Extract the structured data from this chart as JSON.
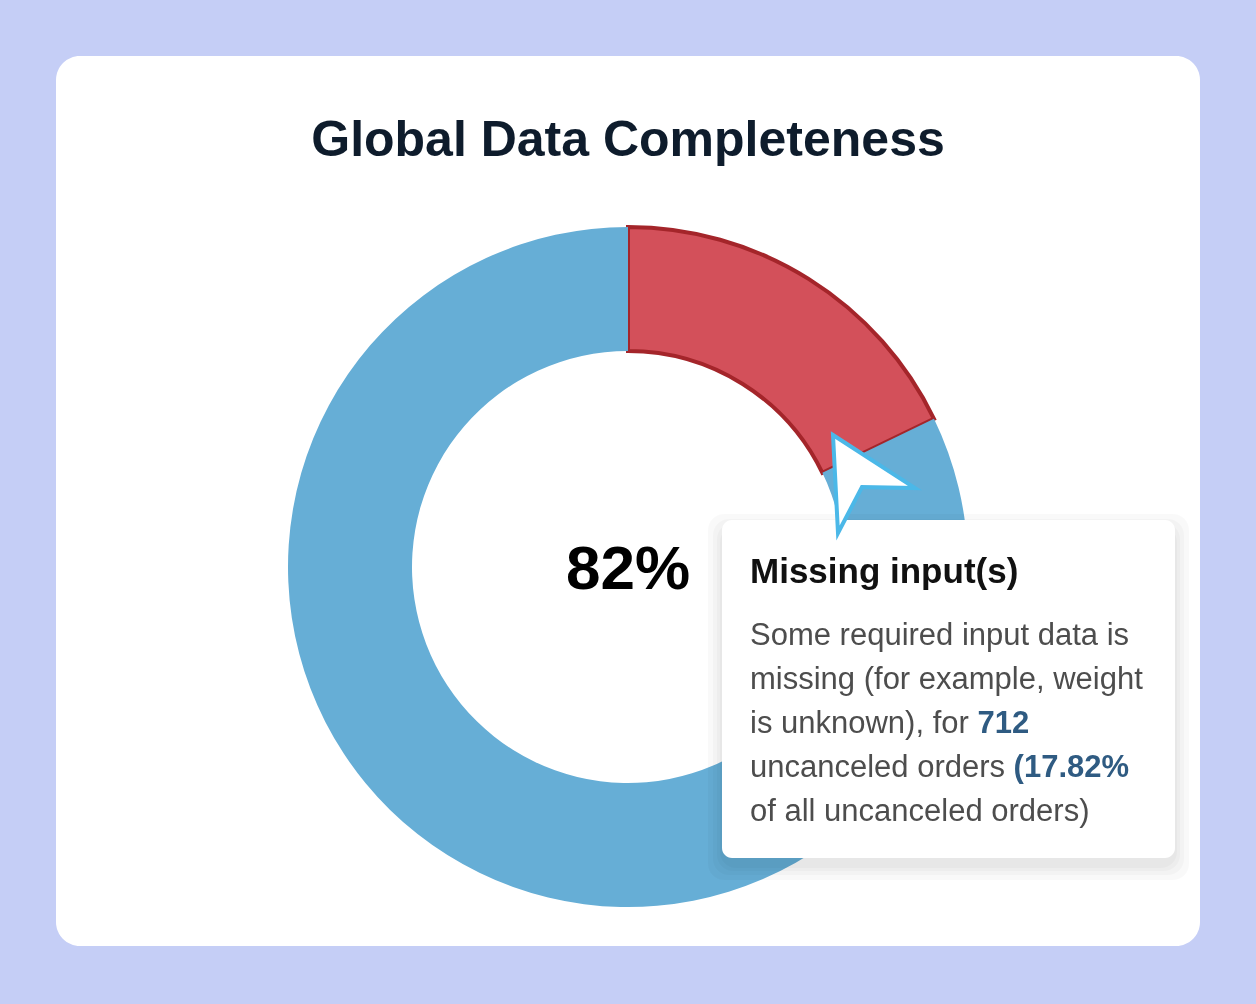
{
  "chart_data": {
    "type": "donut",
    "title": "Global Data Completeness",
    "categories": [
      null,
      null
    ],
    "values": [
      17.82,
      82.18
    ],
    "colors": [
      "#d3505a",
      "#66aed6"
    ],
    "annotations": [
      "82%",
      "Missing input(s)",
      "Some required input data is missing (for example, weight is unknown), for 712 uncanceled orders (17.82% of all uncanceled orders)"
    ]
  }
}
